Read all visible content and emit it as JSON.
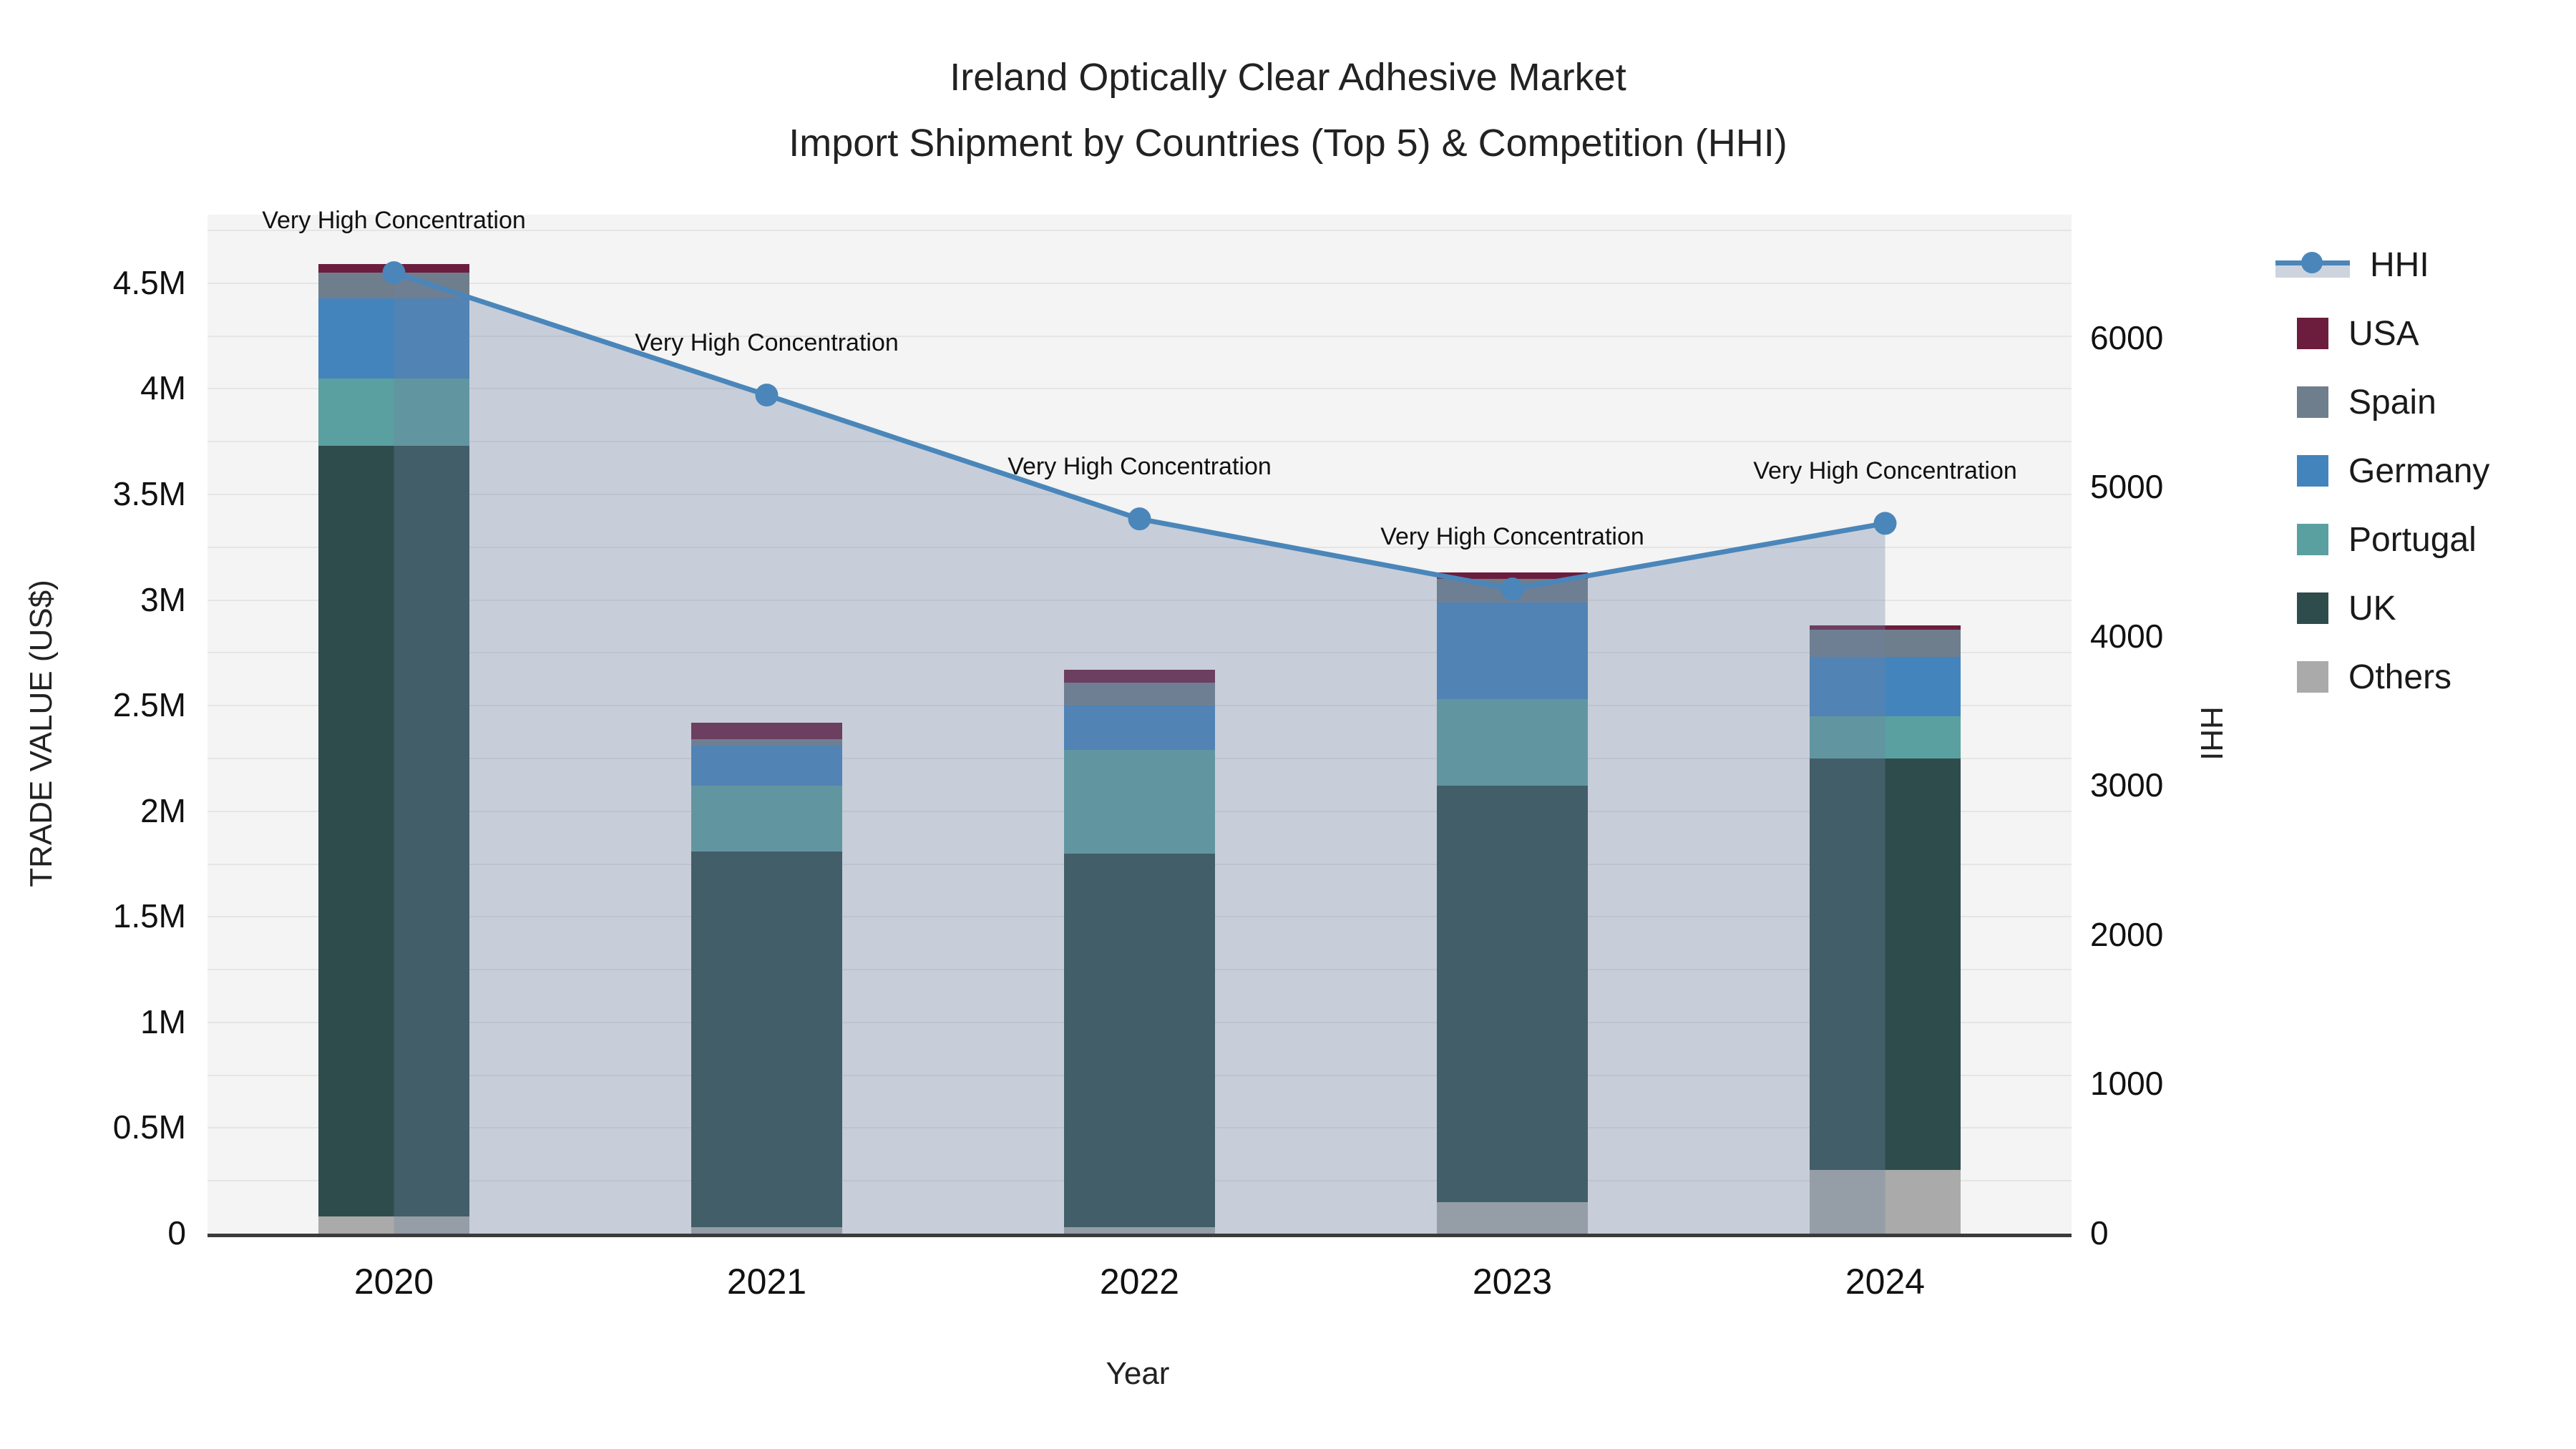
{
  "title": {
    "line1": "Ireland Optically Clear Adhesive Market",
    "line2": "Import Shipment by Countries (Top 5) & Competition (HHI)"
  },
  "colors": {
    "hhi_line": "#4a86ba",
    "hhi_fill": "rgba(110,132,165,0.33)",
    "usa": "#6c1d3e",
    "spain": "#6f7e8c",
    "germany": "#4484bc",
    "portugal": "#5ba0a0",
    "uk": "#2e4c4b",
    "others": "#a9aaa9",
    "plot_bg": "#f3f4f3",
    "axis_line": "#3b3b3b"
  },
  "chart_data": {
    "type": "bar",
    "subtype": "stacked bars (trade value) + HHI line overlay with shaded area",
    "title": "Ireland Optically Clear Adhesive Market",
    "subtitle": "Import Shipment by Countries (Top 5) & Competition (HHI)",
    "xlabel": "Year",
    "ylabel_left": "TRADE VALUE (US$)",
    "ylabel_right": "HHI",
    "categories": [
      "2020",
      "2021",
      "2022",
      "2023",
      "2024"
    ],
    "bar_unit": "million US$",
    "series": [
      {
        "name": "Others",
        "color_key": "others",
        "values": [
          0.08,
          0.03,
          0.03,
          0.15,
          0.3
        ]
      },
      {
        "name": "UK",
        "color_key": "uk",
        "values": [
          3.65,
          1.78,
          1.77,
          1.97,
          1.95
        ]
      },
      {
        "name": "Portugal",
        "color_key": "portugal",
        "values": [
          0.32,
          0.31,
          0.49,
          0.41,
          0.2
        ]
      },
      {
        "name": "Germany",
        "color_key": "germany",
        "values": [
          0.38,
          0.19,
          0.21,
          0.46,
          0.28
        ]
      },
      {
        "name": "Spain",
        "color_key": "spain",
        "values": [
          0.12,
          0.03,
          0.11,
          0.11,
          0.13
        ]
      },
      {
        "name": "USA",
        "color_key": "usa",
        "values": [
          0.04,
          0.08,
          0.06,
          0.03,
          0.02
        ]
      }
    ],
    "bar_totals": [
      4.59,
      2.42,
      2.67,
      3.13,
      2.88
    ],
    "hhi": {
      "name": "HHI",
      "values": [
        6440,
        5620,
        4790,
        4320,
        4760
      ],
      "annotations": [
        "Very High Concentration",
        "Very High Concentration",
        "Very High Concentration",
        "Very High Concentration",
        "Very High Concentration"
      ]
    },
    "axis_left": {
      "range": [
        0,
        4.825
      ],
      "minor_step": 0.25,
      "ticks": [
        {
          "label": "0",
          "value": 0
        },
        {
          "label": "0.5M",
          "value": 0.5
        },
        {
          "label": "1M",
          "value": 1
        },
        {
          "label": "1.5M",
          "value": 1.5
        },
        {
          "label": "2M",
          "value": 2
        },
        {
          "label": "2.5M",
          "value": 2.5
        },
        {
          "label": "3M",
          "value": 3
        },
        {
          "label": "3.5M",
          "value": 3.5
        },
        {
          "label": "4M",
          "value": 4
        },
        {
          "label": "4.5M",
          "value": 4.5
        }
      ]
    },
    "axis_right": {
      "range": [
        0,
        6829
      ],
      "ticks": [
        {
          "label": "0",
          "value": 0
        },
        {
          "label": "1000",
          "value": 1000
        },
        {
          "label": "2000",
          "value": 2000
        },
        {
          "label": "3000",
          "value": 3000
        },
        {
          "label": "4000",
          "value": 4000
        },
        {
          "label": "5000",
          "value": 5000
        },
        {
          "label": "6000",
          "value": 6000
        }
      ]
    },
    "legend": [
      {
        "label": "HHI",
        "type": "line",
        "color_key": "hhi_line"
      },
      {
        "label": "USA",
        "type": "box",
        "color_key": "usa"
      },
      {
        "label": "Spain",
        "type": "box",
        "color_key": "spain"
      },
      {
        "label": "Germany",
        "type": "box",
        "color_key": "germany"
      },
      {
        "label": "Portugal",
        "type": "box",
        "color_key": "portugal"
      },
      {
        "label": "UK",
        "type": "box",
        "color_key": "uk"
      },
      {
        "label": "Others",
        "type": "box",
        "color_key": "others"
      }
    ],
    "legend_position": "right",
    "grid": true
  }
}
